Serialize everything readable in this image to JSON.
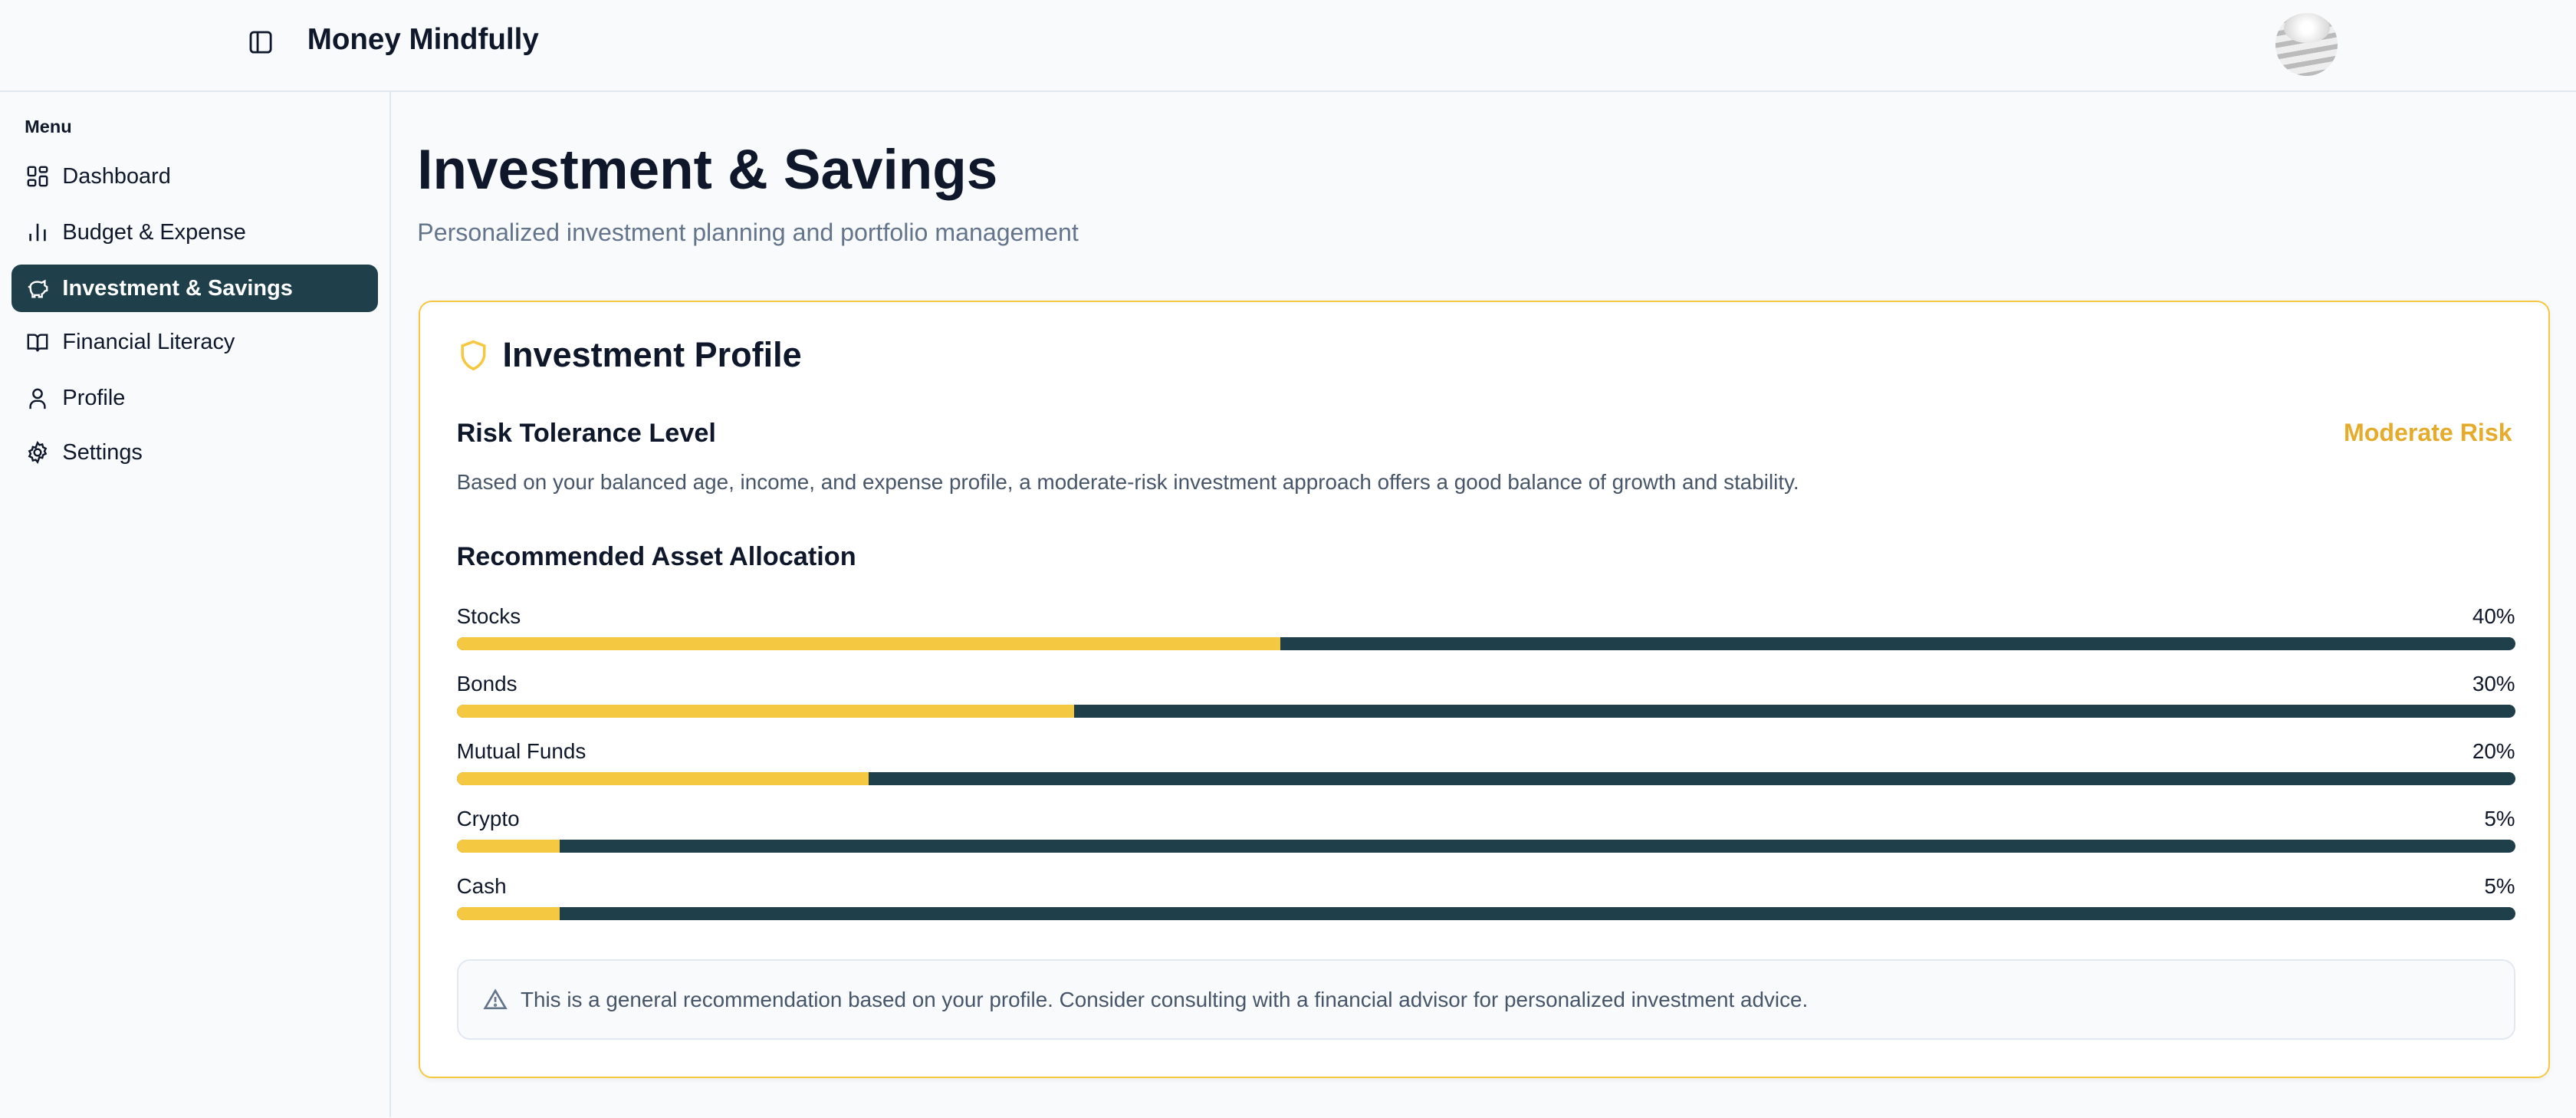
{
  "header": {
    "title": "Money Mindfully",
    "toggle_icon": "sidebar-toggle-icon",
    "avatar": "user-avatar"
  },
  "sidebar": {
    "menu_label": "Menu",
    "items": [
      {
        "label": "Dashboard",
        "icon": "dashboard-icon"
      },
      {
        "label": "Budget & Expense",
        "icon": "bar-chart-icon"
      },
      {
        "label": "Investment & Savings",
        "icon": "piggy-bank-icon",
        "active": true
      },
      {
        "label": "Financial Literacy",
        "icon": "book-icon"
      },
      {
        "label": "Profile",
        "icon": "user-icon"
      },
      {
        "label": "Settings",
        "icon": "gear-icon"
      }
    ]
  },
  "main": {
    "title": "Investment & Savings",
    "subtitle": "Personalized investment planning and portfolio management"
  },
  "card": {
    "title": "Investment Profile",
    "risk_heading": "Risk Tolerance Level",
    "risk_level": "Moderate Risk",
    "risk_description": "Based on your balanced age, income, and expense profile, a moderate-risk investment approach offers a good balance of growth and stability.",
    "allocation_heading": "Recommended Asset Allocation",
    "allocations": [
      {
        "label": "Stocks",
        "value": 40,
        "display": "40%"
      },
      {
        "label": "Bonds",
        "value": 30,
        "display": "30%"
      },
      {
        "label": "Mutual Funds",
        "value": 20,
        "display": "20%"
      },
      {
        "label": "Crypto",
        "value": 5,
        "display": "5%"
      },
      {
        "label": "Cash",
        "value": 5,
        "display": "5%"
      }
    ],
    "notice": "This is a general recommendation based on your profile. Consider consulting with a financial advisor for personalized investment advice."
  },
  "colors": {
    "accent": "#f5c842",
    "primary": "#1f404b",
    "risk": "#e5ac2c"
  }
}
